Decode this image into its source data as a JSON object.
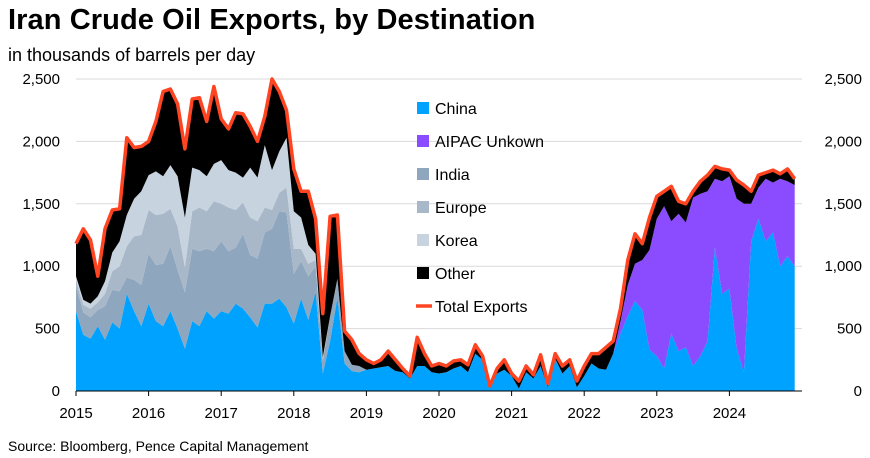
{
  "title": "Iran Crude Oil Exports, by Destination",
  "subtitle": "in thousands of barrels per day",
  "source": "Source: Bloomberg, Pence Capital Management",
  "chart_data": {
    "type": "area",
    "ylim": [
      0,
      2500
    ],
    "xlim": [
      2015,
      2025
    ],
    "yticks": [
      0,
      500,
      1000,
      1500,
      2000,
      2500
    ],
    "ytick_labels": [
      "0",
      "500",
      "1,000",
      "1,500",
      "2,000",
      "2,500"
    ],
    "xtick_labels": [
      "2015",
      "2016",
      "2017",
      "2018",
      "2019",
      "2020",
      "2021",
      "2022",
      "2023",
      "2024"
    ],
    "grid": "horizontal",
    "legend_position": "center",
    "x": [
      2015.0,
      2015.1,
      2015.2,
      2015.3,
      2015.4,
      2015.5,
      2015.6,
      2015.7,
      2015.8,
      2015.9,
      2016.0,
      2016.1,
      2016.2,
      2016.3,
      2016.4,
      2016.5,
      2016.6,
      2016.7,
      2016.8,
      2016.9,
      2017.0,
      2017.1,
      2017.2,
      2017.3,
      2017.4,
      2017.5,
      2017.6,
      2017.7,
      2017.8,
      2017.9,
      2018.0,
      2018.1,
      2018.2,
      2018.3,
      2018.4,
      2018.5,
      2018.6,
      2018.7,
      2018.8,
      2018.9,
      2019.0,
      2019.1,
      2019.2,
      2019.3,
      2019.4,
      2019.5,
      2019.6,
      2019.7,
      2019.8,
      2019.9,
      2020.0,
      2020.1,
      2020.2,
      2020.3,
      2020.4,
      2020.5,
      2020.6,
      2020.7,
      2020.8,
      2020.9,
      2021.0,
      2021.1,
      2021.2,
      2021.3,
      2021.4,
      2021.5,
      2021.6,
      2021.7,
      2021.8,
      2021.9,
      2022.0,
      2022.1,
      2022.2,
      2022.3,
      2022.4,
      2022.5,
      2022.6,
      2022.7,
      2022.8,
      2022.9,
      2023.0,
      2023.1,
      2023.2,
      2023.3,
      2023.4,
      2023.5,
      2023.6,
      2023.7,
      2023.8,
      2023.9,
      2024.0,
      2024.1,
      2024.2,
      2024.3,
      2024.4,
      2024.5,
      2024.6,
      2024.7,
      2024.8,
      2024.9
    ],
    "series": [
      {
        "name": "China",
        "color": "#00A2FF",
        "values": [
          640,
          450,
          420,
          520,
          410,
          550,
          500,
          780,
          640,
          520,
          700,
          560,
          520,
          640,
          500,
          340,
          560,
          520,
          640,
          580,
          640,
          620,
          700,
          660,
          590,
          510,
          700,
          700,
          740,
          670,
          540,
          740,
          570,
          800,
          140,
          400,
          750,
          220,
          160,
          150,
          170,
          180,
          190,
          200,
          160,
          150,
          100,
          200,
          200,
          150,
          140,
          150,
          180,
          200,
          150,
          300,
          250,
          20,
          140,
          170,
          120,
          20,
          150,
          100,
          200,
          30,
          260,
          140,
          200,
          30,
          120,
          220,
          180,
          170,
          300,
          460,
          600,
          720,
          650,
          330,
          280,
          180,
          460,
          320,
          350,
          200,
          280,
          400,
          1150,
          780,
          820,
          340,
          150,
          1200,
          1380,
          1200,
          1270,
          1000,
          1080,
          1000
        ]
      },
      {
        "name": "AIPAC Unkown",
        "color": "#8B4CFF",
        "values": [
          0,
          0,
          0,
          0,
          0,
          0,
          0,
          0,
          0,
          0,
          0,
          0,
          0,
          0,
          0,
          0,
          0,
          0,
          0,
          0,
          0,
          0,
          0,
          0,
          0,
          0,
          0,
          0,
          0,
          0,
          0,
          0,
          0,
          0,
          0,
          0,
          0,
          0,
          0,
          0,
          0,
          0,
          0,
          0,
          0,
          0,
          0,
          0,
          0,
          0,
          0,
          0,
          0,
          0,
          0,
          0,
          0,
          0,
          0,
          0,
          0,
          0,
          0,
          0,
          0,
          0,
          0,
          0,
          0,
          0,
          0,
          0,
          0,
          0,
          0,
          100,
          250,
          300,
          400,
          800,
          1100,
          1300,
          900,
          1100,
          1000,
          1350,
          1300,
          1200,
          550,
          900,
          900,
          1200,
          1350,
          300,
          250,
          500,
          400,
          700,
          600,
          650
        ]
      },
      {
        "name": "India",
        "color": "#8FA6BF",
        "values": [
          200,
          180,
          170,
          130,
          270,
          260,
          300,
          130,
          250,
          330,
          400,
          450,
          500,
          520,
          470,
          450,
          580,
          600,
          500,
          540,
          560,
          500,
          450,
          600,
          500,
          550,
          570,
          600,
          700,
          760,
          400,
          300,
          350,
          200,
          100,
          200,
          150,
          100,
          50,
          50,
          0,
          0,
          0,
          0,
          0,
          0,
          0,
          0,
          0,
          0,
          0,
          0,
          0,
          0,
          0,
          0,
          0,
          0,
          0,
          0,
          0,
          0,
          0,
          0,
          0,
          0,
          0,
          0,
          0,
          0,
          0,
          0,
          0,
          0,
          0,
          0,
          0,
          0,
          0,
          0,
          0,
          0,
          0,
          0,
          0,
          0,
          0,
          0,
          0,
          0,
          0,
          0,
          0,
          0,
          0,
          0,
          0,
          0,
          0,
          0
        ]
      },
      {
        "name": "Europe",
        "color": "#A9B8C8",
        "values": [
          50,
          60,
          70,
          60,
          100,
          150,
          200,
          250,
          350,
          400,
          350,
          400,
          400,
          300,
          350,
          200,
          300,
          350,
          300,
          400,
          300,
          350,
          300,
          250,
          300,
          300,
          200,
          150,
          150,
          200,
          200,
          100,
          100,
          50,
          20,
          0,
          0,
          0,
          0,
          0,
          0,
          0,
          0,
          0,
          0,
          0,
          0,
          0,
          0,
          0,
          0,
          0,
          0,
          0,
          0,
          0,
          0,
          0,
          0,
          0,
          0,
          0,
          0,
          0,
          0,
          0,
          0,
          0,
          0,
          0,
          0,
          0,
          0,
          0,
          0,
          0,
          0,
          0,
          0,
          0,
          0,
          0,
          0,
          0,
          0,
          0,
          0,
          0,
          0,
          0,
          0,
          0,
          0,
          0,
          0,
          0,
          0,
          0,
          0,
          0
        ]
      },
      {
        "name": "Korea",
        "color": "#C7D3DF",
        "values": [
          30,
          40,
          40,
          50,
          100,
          150,
          200,
          250,
          300,
          350,
          280,
          350,
          300,
          350,
          400,
          400,
          350,
          300,
          280,
          300,
          350,
          300,
          300,
          200,
          400,
          350,
          500,
          320,
          330,
          400,
          300,
          250,
          150,
          50,
          10,
          0,
          0,
          0,
          0,
          0,
          0,
          0,
          0,
          0,
          0,
          0,
          0,
          0,
          0,
          0,
          0,
          0,
          0,
          0,
          0,
          0,
          0,
          0,
          0,
          0,
          0,
          0,
          0,
          0,
          0,
          0,
          0,
          0,
          0,
          0,
          0,
          0,
          0,
          0,
          0,
          0,
          0,
          0,
          0,
          0,
          0,
          0,
          0,
          0,
          0,
          0,
          0,
          0,
          0,
          0,
          0,
          0,
          0,
          0,
          0,
          0,
          0,
          0,
          0,
          0
        ]
      },
      {
        "name": "Other",
        "color": "#000000",
        "values": [
          260,
          570,
          510,
          160,
          420,
          340,
          260,
          620,
          410,
          360,
          270,
          400,
          680,
          610,
          580,
          550,
          550,
          580,
          440,
          620,
          330,
          330,
          480,
          510,
          330,
          290,
          230,
          730,
          480,
          220,
          340,
          210,
          430,
          280,
          350,
          800,
          510,
          160,
          200,
          100,
          80,
          40,
          60,
          120,
          90,
          30,
          20,
          230,
          100,
          50,
          80,
          50,
          60,
          50,
          60,
          70,
          30,
          20,
          40,
          80,
          20,
          60,
          50,
          30,
          90,
          30,
          40,
          60,
          50,
          50,
          80,
          80,
          120,
          180,
          100,
          100,
          200,
          240,
          130,
          260,
          180,
          120,
          280,
          100,
          150,
          50,
          100,
          130,
          100,
          100,
          50,
          150,
          150,
          100,
          100,
          50,
          100,
          40,
          100,
          50
        ]
      },
      {
        "name": "Total Exports",
        "color": "#FF4422",
        "values": [
          1180,
          1300,
          1210,
          920,
          1300,
          1450,
          1460,
          2030,
          1950,
          1960,
          2000,
          2160,
          2400,
          2420,
          2300,
          1940,
          2340,
          2350,
          2160,
          2440,
          2180,
          2100,
          2230,
          2220,
          2120,
          2000,
          2200,
          2500,
          2400,
          2250,
          1780,
          1600,
          1600,
          1380,
          620,
          1400,
          1410,
          480,
          410,
          300,
          250,
          220,
          250,
          320,
          250,
          180,
          120,
          430,
          300,
          200,
          220,
          200,
          240,
          250,
          210,
          370,
          280,
          40,
          180,
          250,
          140,
          80,
          200,
          130,
          290,
          60,
          300,
          200,
          250,
          80,
          200,
          300,
          300,
          350,
          400,
          660,
          1050,
          1260,
          1180,
          1390,
          1560,
          1600,
          1640,
          1520,
          1500,
          1600,
          1680,
          1730,
          1800,
          1780,
          1770,
          1690,
          1650,
          1600,
          1730,
          1750,
          1770,
          1740,
          1780,
          1700
        ]
      }
    ]
  }
}
